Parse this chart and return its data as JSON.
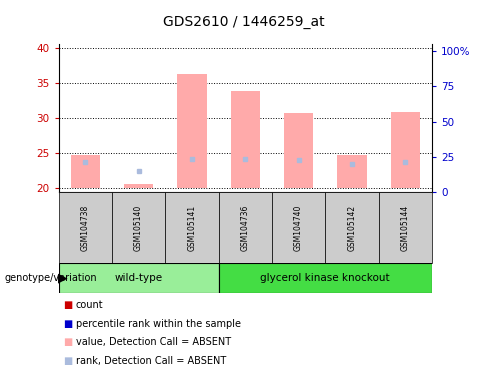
{
  "title": "GDS2610 / 1446259_at",
  "samples": [
    "GSM104738",
    "GSM105140",
    "GSM105141",
    "GSM104736",
    "GSM104740",
    "GSM105142",
    "GSM105144"
  ],
  "group_wt_indices": [
    0,
    1,
    2
  ],
  "group_gk_indices": [
    3,
    4,
    5,
    6
  ],
  "group_wt_label": "wild-type",
  "group_gk_label": "glycerol kinase knockout",
  "group_wt_color": "#99EE99",
  "group_gk_color": "#44DD44",
  "ylim_left": [
    19.5,
    40.5
  ],
  "ylim_right": [
    0,
    105
  ],
  "yticks_left": [
    20,
    25,
    30,
    35,
    40
  ],
  "yticks_right": [
    0,
    25,
    50,
    75,
    100
  ],
  "ytick_labels_right": [
    "0",
    "25",
    "50",
    "75",
    "100%"
  ],
  "bar_color_absent": "#FFAAAA",
  "rank_color_absent": "#AABBDD",
  "absent_value_bars": {
    "GSM104738": [
      20,
      24.8
    ],
    "GSM105140": [
      20,
      20.6
    ],
    "GSM105141": [
      20,
      36.2
    ],
    "GSM104736": [
      20,
      33.8
    ],
    "GSM104740": [
      20,
      30.7
    ],
    "GSM105142": [
      20,
      24.8
    ],
    "GSM105144": [
      20,
      30.9
    ]
  },
  "absent_rank_marks": {
    "GSM104738": 23.8,
    "GSM105140": 22.5,
    "GSM105141": 24.2,
    "GSM104736": 24.2,
    "GSM104740": 24.0,
    "GSM105142": 23.5,
    "GSM105144": 23.8
  },
  "legend_items": [
    {
      "label": "count",
      "color": "#CC0000"
    },
    {
      "label": "percentile rank within the sample",
      "color": "#0000CC"
    },
    {
      "label": "value, Detection Call = ABSENT",
      "color": "#FFAAAA"
    },
    {
      "label": "rank, Detection Call = ABSENT",
      "color": "#AABBDD"
    }
  ],
  "left_tick_color": "#CC0000",
  "right_tick_color": "#0000CC",
  "sample_bg_color": "#CCCCCC",
  "plot_bg_color": "#FFFFFF"
}
